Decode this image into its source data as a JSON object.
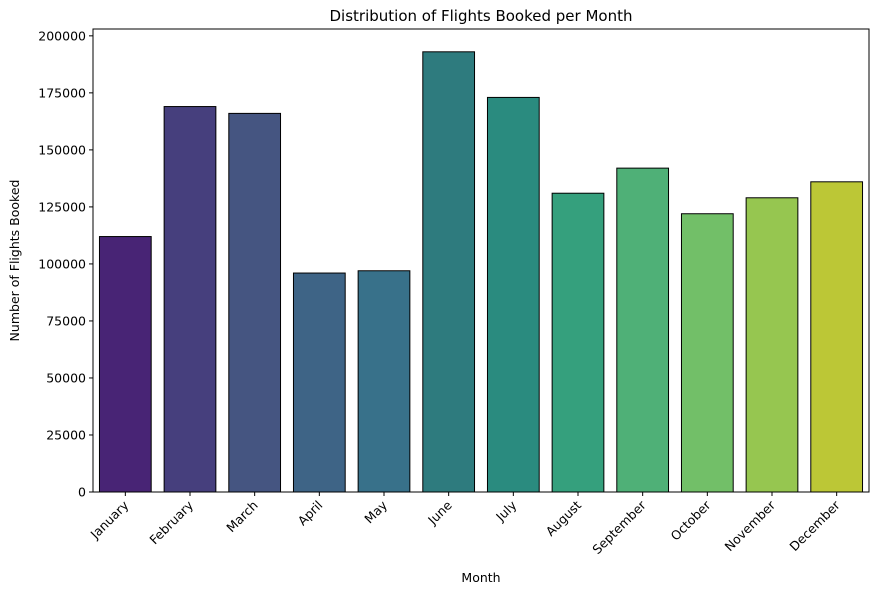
{
  "chart_data": {
    "type": "bar",
    "title": "Distribution of Flights Booked per Month",
    "xlabel": "Month",
    "ylabel": "Number of Flights Booked",
    "categories": [
      "January",
      "February",
      "March",
      "April",
      "May",
      "June",
      "July",
      "August",
      "September",
      "October",
      "November",
      "December"
    ],
    "values": [
      112000,
      169000,
      166000,
      96000,
      97000,
      193000,
      173000,
      131000,
      142000,
      122000,
      129000,
      136000
    ],
    "colors": [
      "#482475",
      "#463f7d",
      "#455581",
      "#3e6486",
      "#38718a",
      "#2e7b7e",
      "#2a8b7f",
      "#35a07d",
      "#4fb077",
      "#72bf68",
      "#96c650",
      "#bcc736"
    ],
    "ylim": [
      0,
      203000
    ],
    "yticks": [
      0,
      25000,
      50000,
      75000,
      100000,
      125000,
      150000,
      175000,
      200000
    ],
    "ytick_labels": [
      "0",
      "25000",
      "50000",
      "75000",
      "100000",
      "125000",
      "150000",
      "175000",
      "200000"
    ],
    "grid": false,
    "legend": "none"
  }
}
